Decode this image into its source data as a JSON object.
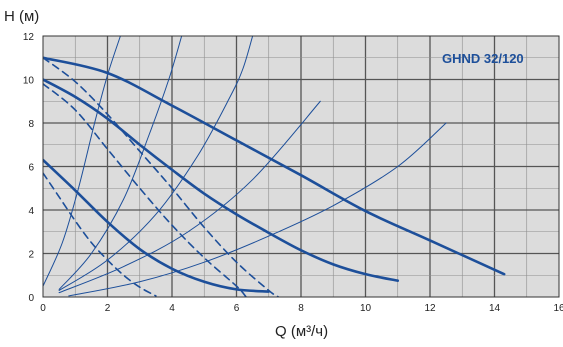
{
  "chart_data": {
    "type": "line",
    "title": "GHND 32/120",
    "xlabel": "Q (м³/ч)",
    "ylabel": "Н (м)",
    "xlim": [
      0,
      16
    ],
    "ylim": [
      0,
      12
    ],
    "x_ticks": [
      "0",
      "2",
      "4",
      "6",
      "8",
      "10",
      "12",
      "14",
      "16"
    ],
    "y_ticks": [
      "0",
      "2",
      "4",
      "6",
      "8",
      "10",
      "12"
    ],
    "grid": true,
    "legend": "none",
    "colors": {
      "curve": "#1d4f9a",
      "plot_bg": "#dcdcdc",
      "grid_major": "#555555",
      "grid_minor": "#8e8e8e"
    },
    "series": [
      {
        "role": "pump-curve",
        "style": "solid-thick",
        "points": [
          [
            0,
            11.0
          ],
          [
            2,
            10.3
          ],
          [
            4,
            8.8
          ],
          [
            6,
            7.2
          ],
          [
            8,
            5.6
          ],
          [
            10,
            3.95
          ],
          [
            12,
            2.6
          ],
          [
            14.3,
            1.05
          ]
        ]
      },
      {
        "role": "pump-curve",
        "style": "solid-thick",
        "points": [
          [
            0,
            10.0
          ],
          [
            1,
            9.2
          ],
          [
            2,
            8.2
          ],
          [
            3,
            7.0
          ],
          [
            4,
            5.85
          ],
          [
            5,
            4.75
          ],
          [
            6,
            3.8
          ],
          [
            7,
            2.95
          ],
          [
            8,
            2.15
          ],
          [
            9,
            1.5
          ],
          [
            10,
            1.05
          ],
          [
            11,
            0.75
          ]
        ]
      },
      {
        "role": "pump-curve",
        "style": "dashed",
        "points": [
          [
            0,
            11.0
          ],
          [
            1,
            9.9
          ],
          [
            2,
            8.4
          ],
          [
            3,
            6.7
          ],
          [
            4,
            5.0
          ],
          [
            5,
            3.2
          ],
          [
            6,
            1.6
          ],
          [
            7,
            0.3
          ],
          [
            7.3,
            0
          ]
        ]
      },
      {
        "role": "pump-curve",
        "style": "dashed",
        "points": [
          [
            0,
            9.8
          ],
          [
            1,
            8.6
          ],
          [
            2,
            6.8
          ],
          [
            3,
            5.0
          ],
          [
            4,
            3.3
          ],
          [
            5,
            1.8
          ],
          [
            6,
            0.5
          ],
          [
            6.3,
            0
          ]
        ]
      },
      {
        "role": "pump-curve",
        "style": "solid-thick",
        "points": [
          [
            0,
            6.3
          ],
          [
            1,
            4.9
          ],
          [
            2,
            3.45
          ],
          [
            3,
            2.2
          ],
          [
            4,
            1.3
          ],
          [
            5,
            0.7
          ],
          [
            6,
            0.35
          ],
          [
            7,
            0.25
          ]
        ]
      },
      {
        "role": "pump-curve",
        "style": "dashed",
        "points": [
          [
            0,
            5.7
          ],
          [
            0.5,
            4.6
          ],
          [
            1,
            3.5
          ],
          [
            1.5,
            2.5
          ],
          [
            2,
            1.7
          ],
          [
            2.5,
            1.0
          ],
          [
            3,
            0.45
          ],
          [
            3.5,
            0.05
          ]
        ]
      },
      {
        "role": "system-curve",
        "style": "solid-thin",
        "points": [
          [
            0,
            0.5
          ],
          [
            0.6,
            2.5
          ],
          [
            1.1,
            5
          ],
          [
            1.6,
            8
          ],
          [
            2.0,
            10.2
          ],
          [
            2.4,
            12
          ]
        ]
      },
      {
        "role": "system-curve",
        "style": "solid-thin",
        "points": [
          [
            0.5,
            0.35
          ],
          [
            1.5,
            2.0
          ],
          [
            2.5,
            4.5
          ],
          [
            3.3,
            7.5
          ],
          [
            3.9,
            10
          ],
          [
            4.3,
            12
          ]
        ]
      },
      {
        "role": "system-curve",
        "style": "solid-thin",
        "points": [
          [
            0.5,
            0.3
          ],
          [
            2,
            1.7
          ],
          [
            3.5,
            3.8
          ],
          [
            4.8,
            6.5
          ],
          [
            5.8,
            9.2
          ],
          [
            6.2,
            10.5
          ],
          [
            6.5,
            12
          ]
        ]
      },
      {
        "role": "system-curve",
        "style": "solid-thin",
        "points": [
          [
            0.5,
            0.2
          ],
          [
            2.5,
            1.4
          ],
          [
            4.5,
            3.0
          ],
          [
            6.5,
            5.4
          ],
          [
            8.6,
            9.0
          ]
        ]
      },
      {
        "role": "system-curve",
        "style": "solid-thin",
        "points": [
          [
            0.8,
            0.05
          ],
          [
            3,
            0.7
          ],
          [
            5,
            1.6
          ],
          [
            7,
            2.8
          ],
          [
            9,
            4.2
          ],
          [
            11,
            6.0
          ],
          [
            12.5,
            8.0
          ]
        ]
      }
    ]
  }
}
